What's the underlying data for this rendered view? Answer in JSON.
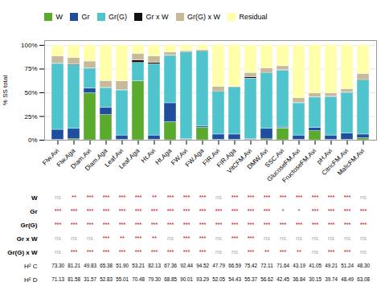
{
  "chart_data": {
    "type": "bar",
    "stacked": true,
    "categories": [
      "Flw.Avi",
      "Flw.Aga",
      "Diam.Avi",
      "Diam.Aga",
      "Leaf.Avi",
      "Leaf.Aga",
      "Ht.Avi",
      "Ht.Aga",
      "FW.Avi",
      "FW.Aga",
      "FIR.Avi",
      "FIR.Aga",
      "VitCFM.Avi",
      "DMW.Avi",
      "SSC.Avi",
      "GlucoseFM.Avi",
      "FructoseFM.Avi",
      "pH.Avi",
      "CitricFM.Avi",
      "MalicFM.Avi"
    ],
    "series": [
      {
        "name": "W",
        "color": "#5aaa2e",
        "values": [
          0.5,
          1.0,
          49.5,
          26.5,
          0.5,
          62.0,
          0.5,
          19.0,
          0.5,
          13.0,
          0.5,
          0.5,
          0.5,
          1.0,
          12.5,
          0.5,
          9.5,
          0.5,
          0.5,
          2.0
        ]
      },
      {
        "name": "Gr",
        "color": "#1f4e9e",
        "values": [
          10.5,
          11.0,
          5.0,
          8.0,
          4.5,
          0.5,
          4.5,
          20.0,
          0.5,
          1.5,
          5.5,
          5.5,
          1.0,
          11.0,
          1.0,
          4.5,
          3.5,
          4.5,
          6.5,
          4.0
        ]
      },
      {
        "name": "Gr(G)",
        "color": "#4fc4cc",
        "values": [
          69.5,
          67.0,
          21.0,
          20.5,
          47.5,
          19.0,
          75.0,
          50.0,
          91.5,
          79.0,
          45.0,
          49.5,
          63.5,
          58.5,
          60.0,
          34.0,
          32.0,
          40.5,
          43.0,
          57.0
        ]
      },
      {
        "name": "Gr x W",
        "color": "#111111",
        "values": [
          0.5,
          1.0,
          0.5,
          0.5,
          0.5,
          2.5,
          1.5,
          0.5,
          0.5,
          0.5,
          0.5,
          0.5,
          1.5,
          0.5,
          0.5,
          0.5,
          0.5,
          0.5,
          0.5,
          0.5
        ]
      },
      {
        "name": "Gr(G) x W",
        "color": "#c8b99a",
        "values": [
          7.5,
          7.0,
          7.0,
          7.0,
          9.0,
          7.0,
          7.0,
          3.0,
          1.0,
          1.0,
          5.0,
          0.5,
          4.5,
          5.0,
          4.0,
          5.0,
          4.0,
          3.5,
          3.5,
          6.5
        ]
      },
      {
        "name": "Residual",
        "color": "#ffffaa",
        "values": [
          11.0,
          13.0,
          17.0,
          37.5,
          38.0,
          9.0,
          11.5,
          7.5,
          6.0,
          5.0,
          44.0,
          44.0,
          29.0,
          24.0,
          22.0,
          55.5,
          51.0,
          51.0,
          46.5,
          30.0
        ]
      }
    ],
    "ylabel": "% SS total",
    "ylim": [
      0,
      105
    ],
    "yticks": [
      {
        "value": 0,
        "label": "0%"
      },
      {
        "value": 25,
        "label": "25%"
      },
      {
        "value": 50,
        "label": "50%"
      },
      {
        "value": 75,
        "label": "75%"
      },
      {
        "value": 100,
        "label": "100%"
      }
    ],
    "grid": true,
    "legend": "top",
    "significance": {
      "rows": [
        {
          "name": "W",
          "values": [
            "ns",
            "**",
            "***",
            "***",
            "***",
            "***",
            "**",
            "***",
            "***",
            "***",
            "ns",
            "***",
            "***",
            "***",
            "***",
            "***",
            "***",
            "***",
            "***",
            "ns"
          ]
        },
        {
          "name": "Gr",
          "values": [
            "***",
            "***",
            "***",
            "***",
            "***",
            "***",
            "***",
            "***",
            "***",
            "***",
            "***",
            "***",
            "***",
            "***",
            "*",
            "*",
            "***",
            "***",
            "***",
            "***"
          ]
        },
        {
          "name": "Gr(G)",
          "values": [
            "***",
            "***",
            "***",
            "***",
            "***",
            "***",
            "***",
            "***",
            "***",
            "***",
            "***",
            "***",
            "***",
            "***",
            "***",
            "***",
            "***",
            "***",
            "***",
            "***"
          ]
        },
        {
          "name": "Gr x W",
          "values": [
            "ns",
            "ns",
            "ns",
            "***",
            "**",
            "***",
            "**",
            "ns",
            "***",
            "***",
            "ns",
            "***",
            "***",
            "ns",
            "ns",
            "ns",
            "ns",
            "ns",
            "ns",
            "ns"
          ]
        },
        {
          "name": "Gr(G) x W",
          "values": [
            "ns",
            "***",
            "***",
            "***",
            "***",
            "***",
            "***",
            "***",
            "***",
            "***",
            "ns",
            "ns",
            "***",
            "**",
            "***",
            "**",
            "ns",
            "***",
            "***",
            "ns"
          ]
        }
      ],
      "colors": {
        "***": "#cc0000",
        "**": "#cc0000",
        "*": "#555555",
        "ns": "#aaaaaa"
      }
    },
    "heritability": [
      {
        "name": "H² C",
        "values": [
          73.3,
          81.21,
          49.83,
          65.38,
          51.9,
          53.21,
          82.13,
          67.36,
          92.44,
          94.52,
          47.79,
          66.59,
          75.42,
          72.11,
          71.64,
          43.19,
          41.05,
          49.21,
          51.24,
          48.3
        ],
        "value_labels": [
          "73.30",
          "81.21",
          "49.83",
          "65.38",
          "51.90",
          "53.21",
          "82.13",
          "67.36",
          "92.44",
          "94.52",
          "47.79",
          "66.59",
          "75.42",
          "72.11",
          "71.64",
          "43.19",
          "41.05",
          "49.21",
          "51.24",
          "48.30"
        ]
      },
      {
        "name": "H² D",
        "values": [
          71.13,
          81.58,
          31.57,
          52.83,
          55.01,
          70.48,
          79.3,
          68.85,
          90.01,
          93.29,
          52.05,
          54.43,
          55.37,
          56.62,
          42.45,
          36.84,
          30.15,
          39.74,
          48.49,
          63.08
        ],
        "value_labels": [
          "71.13",
          "81.58",
          "31.57",
          "52.83",
          "55.01",
          "70.48",
          "79.30",
          "68.85",
          "90.01",
          "93.29",
          "52.05",
          "54.43",
          "55.37",
          "56.62",
          "42.45",
          "36.84",
          "30.15",
          "39.74",
          "48.49",
          "63.08"
        ]
      }
    ]
  }
}
